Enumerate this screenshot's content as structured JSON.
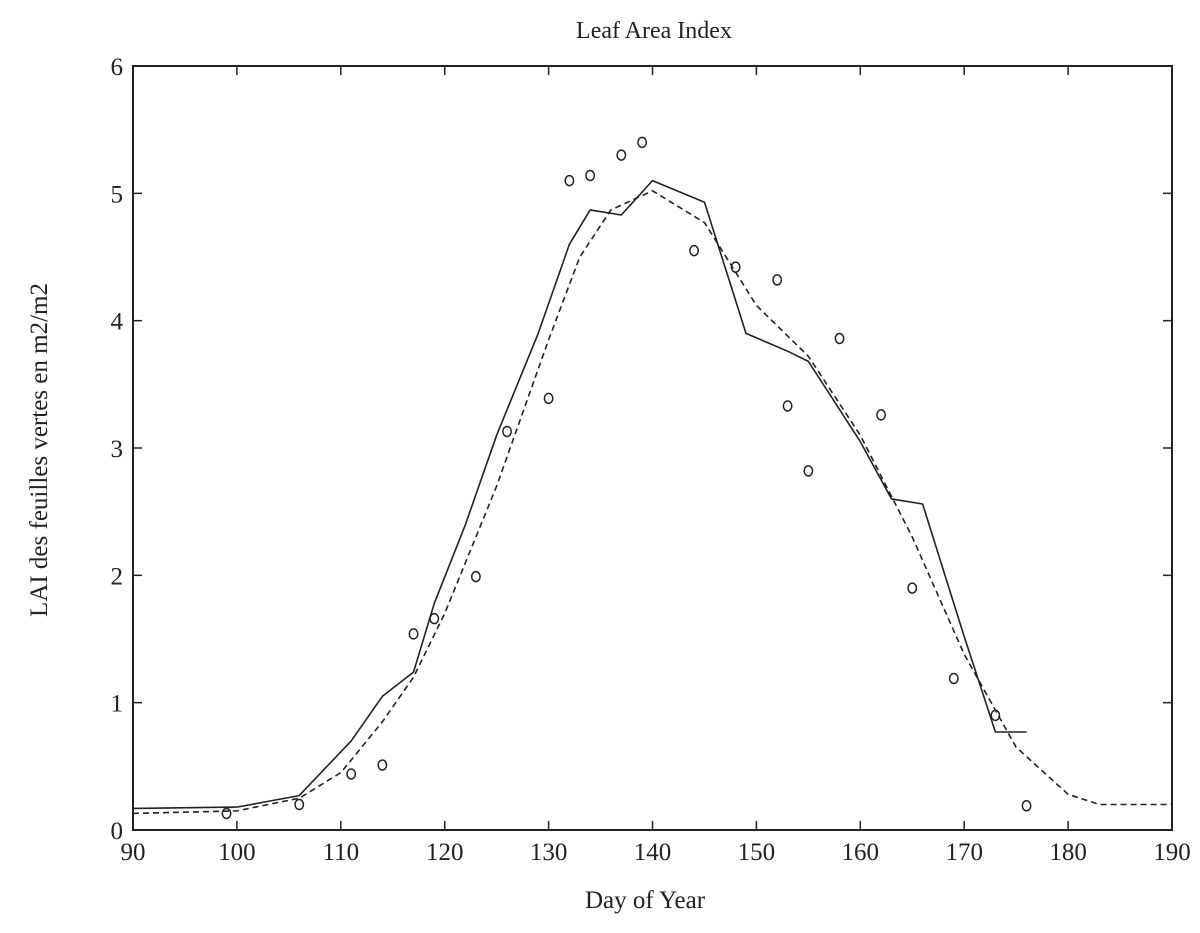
{
  "chart_data": {
    "type": "line",
    "title": "Leaf Area Index",
    "xlabel": "Day of Year",
    "ylabel": "LAI des feuilles vertes en m2/m2",
    "xlim": [
      90,
      190
    ],
    "ylim": [
      0,
      6
    ],
    "x_ticks": [
      "90",
      "100",
      "110",
      "120",
      "130",
      "140",
      "150",
      "160",
      "170",
      "180",
      "190"
    ],
    "y_ticks": [
      "0",
      "1",
      "2",
      "3",
      "4",
      "5",
      "6"
    ],
    "grid": false,
    "legend": "none",
    "series": [
      {
        "style": "solid",
        "color": "#222222",
        "x": [
          90,
          100,
          106,
          111,
          114,
          117,
          119,
          122,
          125,
          129,
          132,
          134,
          137,
          140,
          145,
          149,
          153,
          155,
          160,
          163,
          166,
          170,
          173,
          176
        ],
        "y": [
          0.17,
          0.18,
          0.27,
          0.7,
          1.05,
          1.24,
          1.78,
          2.4,
          3.1,
          3.9,
          4.6,
          4.87,
          4.83,
          5.1,
          4.93,
          3.9,
          3.76,
          3.68,
          3.05,
          2.6,
          2.56,
          1.52,
          0.77,
          0.77
        ]
      },
      {
        "style": "dashed",
        "color": "#222222",
        "x": [
          90,
          100,
          106,
          110,
          114,
          117,
          120,
          125,
          130,
          133,
          136,
          140,
          145,
          150,
          155,
          160,
          165,
          170,
          175,
          180,
          183,
          186,
          190
        ],
        "y": [
          0.13,
          0.15,
          0.25,
          0.45,
          0.85,
          1.2,
          1.7,
          2.7,
          3.85,
          4.5,
          4.87,
          5.02,
          4.77,
          4.12,
          3.72,
          3.1,
          2.3,
          1.38,
          0.65,
          0.28,
          0.2,
          0.2,
          0.2
        ]
      },
      {
        "style": "markers",
        "marker": "o",
        "color": "#222222",
        "x": [
          99,
          106,
          111,
          114,
          117,
          119,
          123,
          126,
          130,
          132,
          134,
          137,
          139,
          144,
          148,
          152,
          153,
          155,
          158,
          162,
          165,
          169,
          173,
          176
        ],
        "y": [
          0.13,
          0.2,
          0.44,
          0.51,
          1.54,
          1.66,
          1.99,
          3.13,
          3.39,
          5.1,
          5.14,
          5.3,
          5.4,
          4.55,
          4.42,
          4.32,
          3.33,
          2.82,
          3.86,
          3.26,
          1.9,
          1.19,
          0.9,
          0.19
        ]
      }
    ]
  }
}
